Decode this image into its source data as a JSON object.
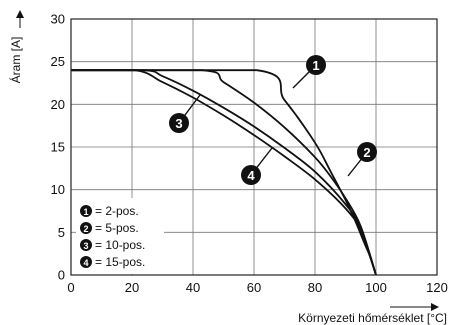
{
  "chart_data": {
    "type": "line",
    "xlabel": "Környezeti hőmérséklet [°C]",
    "ylabel": "Áram [A]",
    "xlim": [
      0,
      120
    ],
    "ylim": [
      0,
      30
    ],
    "xticks": [
      "0",
      "20",
      "40",
      "60",
      "80",
      "100",
      "120"
    ],
    "yticks": [
      "0",
      "5",
      "10",
      "15",
      "20",
      "25",
      "30"
    ],
    "grid": true,
    "legend_position": "bottom-left",
    "series": [
      {
        "marker": "1",
        "legend": "= 2-pos.",
        "x": [
          0,
          61,
          70,
          80,
          85,
          90,
          93,
          96,
          98,
          100
        ],
        "y": [
          24,
          24,
          20.5,
          15.5,
          12.2,
          8.8,
          6.5,
          3.9,
          2.2,
          0
        ]
      },
      {
        "marker": "2",
        "legend": "= 5-pos.",
        "x": [
          0,
          43,
          50,
          60,
          70,
          80,
          85,
          90,
          95,
          100
        ],
        "y": [
          24,
          24,
          22.6,
          20.2,
          17.3,
          13.8,
          11.6,
          9.0,
          5.7,
          0
        ]
      },
      {
        "marker": "3",
        "legend": "= 10-pos.",
        "x": [
          0,
          24,
          30,
          40,
          50,
          60,
          70,
          80,
          90,
          95,
          100
        ],
        "y": [
          24,
          24,
          23.3,
          21.6,
          19.6,
          17.4,
          14.9,
          12.1,
          8.3,
          5.5,
          0
        ]
      },
      {
        "marker": "4",
        "legend": "= 15-pos.",
        "x": [
          0,
          21,
          30,
          40,
          50,
          60,
          70,
          80,
          90,
          95,
          100
        ],
        "y": [
          24,
          24,
          22.6,
          20.8,
          18.7,
          16.4,
          13.9,
          11.2,
          7.8,
          5.2,
          0
        ]
      }
    ]
  }
}
